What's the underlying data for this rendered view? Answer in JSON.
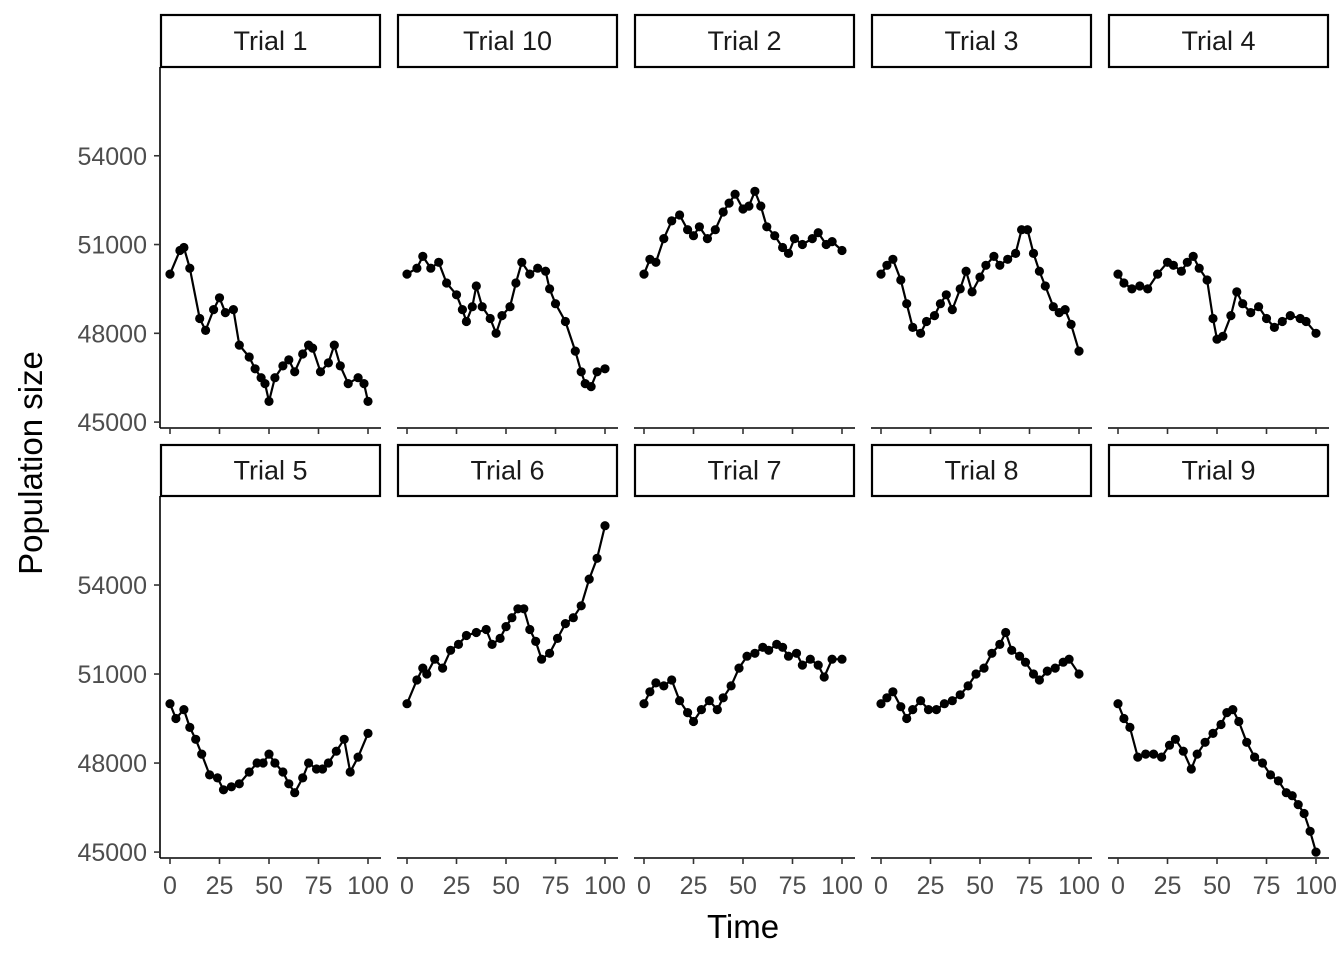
{
  "chart_data": {
    "type": "scatter",
    "connected": true,
    "facet_layout": {
      "rows": 2,
      "cols": 5
    },
    "xlabel": "Time",
    "ylabel": "Population size",
    "xlim": [
      0,
      100
    ],
    "x_ticks": [
      0,
      25,
      50,
      75,
      100
    ],
    "x_tick_labels": [
      "0",
      "25",
      "50",
      "75",
      "100"
    ],
    "ylim": [
      44800,
      57000
    ],
    "y_ticks": [
      45000,
      48000,
      51000,
      54000
    ],
    "y_tick_labels": [
      "45000",
      "48000",
      "51000",
      "54000"
    ],
    "grid": false,
    "point_color": "#000000",
    "panels": [
      {
        "label": "Trial 1",
        "points": [
          [
            0,
            50000
          ],
          [
            5,
            50800
          ],
          [
            7,
            50900
          ],
          [
            10,
            50200
          ],
          [
            15,
            48500
          ],
          [
            18,
            48100
          ],
          [
            22,
            48800
          ],
          [
            25,
            49200
          ],
          [
            28,
            48700
          ],
          [
            32,
            48800
          ],
          [
            35,
            47600
          ],
          [
            40,
            47200
          ],
          [
            43,
            46800
          ],
          [
            46,
            46500
          ],
          [
            48,
            46300
          ],
          [
            50,
            45700
          ],
          [
            53,
            46500
          ],
          [
            57,
            46900
          ],
          [
            60,
            47100
          ],
          [
            63,
            46700
          ],
          [
            67,
            47300
          ],
          [
            70,
            47600
          ],
          [
            72,
            47500
          ],
          [
            76,
            46700
          ],
          [
            80,
            47000
          ],
          [
            83,
            47600
          ],
          [
            86,
            46900
          ],
          [
            90,
            46300
          ],
          [
            95,
            46500
          ],
          [
            98,
            46300
          ],
          [
            100,
            45700
          ]
        ]
      },
      {
        "label": "Trial 10",
        "points": [
          [
            0,
            50000
          ],
          [
            5,
            50200
          ],
          [
            8,
            50600
          ],
          [
            12,
            50200
          ],
          [
            16,
            50400
          ],
          [
            20,
            49700
          ],
          [
            25,
            49300
          ],
          [
            28,
            48800
          ],
          [
            30,
            48400
          ],
          [
            33,
            48900
          ],
          [
            35,
            49600
          ],
          [
            38,
            48900
          ],
          [
            42,
            48500
          ],
          [
            45,
            48000
          ],
          [
            48,
            48600
          ],
          [
            52,
            48900
          ],
          [
            55,
            49700
          ],
          [
            58,
            50400
          ],
          [
            62,
            50000
          ],
          [
            66,
            50200
          ],
          [
            70,
            50100
          ],
          [
            72,
            49500
          ],
          [
            75,
            49000
          ],
          [
            80,
            48400
          ],
          [
            85,
            47400
          ],
          [
            88,
            46700
          ],
          [
            90,
            46300
          ],
          [
            93,
            46200
          ],
          [
            96,
            46700
          ],
          [
            100,
            46800
          ]
        ]
      },
      {
        "label": "Trial 2",
        "points": [
          [
            0,
            50000
          ],
          [
            3,
            50500
          ],
          [
            6,
            50400
          ],
          [
            10,
            51200
          ],
          [
            14,
            51800
          ],
          [
            18,
            52000
          ],
          [
            22,
            51500
          ],
          [
            25,
            51300
          ],
          [
            28,
            51600
          ],
          [
            32,
            51200
          ],
          [
            36,
            51500
          ],
          [
            40,
            52100
          ],
          [
            43,
            52400
          ],
          [
            46,
            52700
          ],
          [
            50,
            52200
          ],
          [
            53,
            52300
          ],
          [
            56,
            52800
          ],
          [
            59,
            52300
          ],
          [
            62,
            51600
          ],
          [
            66,
            51300
          ],
          [
            70,
            50900
          ],
          [
            73,
            50700
          ],
          [
            76,
            51200
          ],
          [
            80,
            51000
          ],
          [
            85,
            51200
          ],
          [
            88,
            51400
          ],
          [
            92,
            51000
          ],
          [
            95,
            51100
          ],
          [
            100,
            50800
          ]
        ]
      },
      {
        "label": "Trial 3",
        "points": [
          [
            0,
            50000
          ],
          [
            3,
            50300
          ],
          [
            6,
            50500
          ],
          [
            10,
            49800
          ],
          [
            13,
            49000
          ],
          [
            16,
            48200
          ],
          [
            20,
            48000
          ],
          [
            23,
            48400
          ],
          [
            27,
            48600
          ],
          [
            30,
            49000
          ],
          [
            33,
            49300
          ],
          [
            36,
            48800
          ],
          [
            40,
            49500
          ],
          [
            43,
            50100
          ],
          [
            46,
            49400
          ],
          [
            50,
            49900
          ],
          [
            53,
            50300
          ],
          [
            57,
            50600
          ],
          [
            60,
            50300
          ],
          [
            64,
            50500
          ],
          [
            68,
            50700
          ],
          [
            71,
            51500
          ],
          [
            74,
            51500
          ],
          [
            77,
            50700
          ],
          [
            80,
            50100
          ],
          [
            83,
            49600
          ],
          [
            87,
            48900
          ],
          [
            90,
            48700
          ],
          [
            93,
            48800
          ],
          [
            96,
            48300
          ],
          [
            100,
            47400
          ]
        ]
      },
      {
        "label": "Trial 4",
        "points": [
          [
            0,
            50000
          ],
          [
            3,
            49700
          ],
          [
            7,
            49500
          ],
          [
            11,
            49600
          ],
          [
            15,
            49500
          ],
          [
            20,
            50000
          ],
          [
            25,
            50400
          ],
          [
            28,
            50300
          ],
          [
            32,
            50100
          ],
          [
            35,
            50400
          ],
          [
            38,
            50600
          ],
          [
            41,
            50200
          ],
          [
            45,
            49800
          ],
          [
            48,
            48500
          ],
          [
            50,
            47800
          ],
          [
            53,
            47900
          ],
          [
            57,
            48600
          ],
          [
            60,
            49400
          ],
          [
            63,
            49000
          ],
          [
            67,
            48700
          ],
          [
            71,
            48900
          ],
          [
            75,
            48500
          ],
          [
            79,
            48200
          ],
          [
            83,
            48400
          ],
          [
            87,
            48600
          ],
          [
            92,
            48500
          ],
          [
            95,
            48400
          ],
          [
            100,
            48000
          ]
        ]
      },
      {
        "label": "Trial 5",
        "points": [
          [
            0,
            50000
          ],
          [
            3,
            49500
          ],
          [
            7,
            49800
          ],
          [
            10,
            49200
          ],
          [
            13,
            48800
          ],
          [
            16,
            48300
          ],
          [
            20,
            47600
          ],
          [
            24,
            47500
          ],
          [
            27,
            47100
          ],
          [
            31,
            47200
          ],
          [
            35,
            47300
          ],
          [
            40,
            47700
          ],
          [
            44,
            48000
          ],
          [
            47,
            48000
          ],
          [
            50,
            48300
          ],
          [
            53,
            48000
          ],
          [
            57,
            47700
          ],
          [
            60,
            47300
          ],
          [
            63,
            47000
          ],
          [
            67,
            47500
          ],
          [
            70,
            48000
          ],
          [
            74,
            47800
          ],
          [
            77,
            47800
          ],
          [
            80,
            48000
          ],
          [
            84,
            48400
          ],
          [
            88,
            48800
          ],
          [
            91,
            47700
          ],
          [
            95,
            48200
          ],
          [
            100,
            49000
          ]
        ]
      },
      {
        "label": "Trial 6",
        "points": [
          [
            0,
            50000
          ],
          [
            5,
            50800
          ],
          [
            8,
            51200
          ],
          [
            10,
            51000
          ],
          [
            14,
            51500
          ],
          [
            18,
            51200
          ],
          [
            22,
            51800
          ],
          [
            26,
            52000
          ],
          [
            30,
            52300
          ],
          [
            35,
            52400
          ],
          [
            40,
            52500
          ],
          [
            43,
            52000
          ],
          [
            47,
            52200
          ],
          [
            50,
            52600
          ],
          [
            53,
            52900
          ],
          [
            56,
            53200
          ],
          [
            59,
            53200
          ],
          [
            62,
            52500
          ],
          [
            65,
            52100
          ],
          [
            68,
            51500
          ],
          [
            72,
            51700
          ],
          [
            76,
            52200
          ],
          [
            80,
            52700
          ],
          [
            84,
            52900
          ],
          [
            88,
            53300
          ],
          [
            92,
            54200
          ],
          [
            96,
            54900
          ],
          [
            100,
            56000
          ]
        ]
      },
      {
        "label": "Trial 7",
        "points": [
          [
            0,
            50000
          ],
          [
            3,
            50400
          ],
          [
            6,
            50700
          ],
          [
            10,
            50600
          ],
          [
            14,
            50800
          ],
          [
            18,
            50100
          ],
          [
            22,
            49700
          ],
          [
            25,
            49400
          ],
          [
            29,
            49800
          ],
          [
            33,
            50100
          ],
          [
            37,
            49800
          ],
          [
            40,
            50200
          ],
          [
            44,
            50600
          ],
          [
            48,
            51200
          ],
          [
            52,
            51600
          ],
          [
            56,
            51700
          ],
          [
            60,
            51900
          ],
          [
            63,
            51800
          ],
          [
            67,
            52000
          ],
          [
            70,
            51900
          ],
          [
            73,
            51600
          ],
          [
            77,
            51700
          ],
          [
            80,
            51300
          ],
          [
            84,
            51500
          ],
          [
            88,
            51300
          ],
          [
            91,
            50900
          ],
          [
            95,
            51500
          ],
          [
            100,
            51500
          ]
        ]
      },
      {
        "label": "Trial 8",
        "points": [
          [
            0,
            50000
          ],
          [
            3,
            50200
          ],
          [
            6,
            50400
          ],
          [
            10,
            49900
          ],
          [
            13,
            49500
          ],
          [
            16,
            49800
          ],
          [
            20,
            50100
          ],
          [
            24,
            49800
          ],
          [
            28,
            49800
          ],
          [
            32,
            50000
          ],
          [
            36,
            50100
          ],
          [
            40,
            50300
          ],
          [
            44,
            50600
          ],
          [
            48,
            51000
          ],
          [
            52,
            51200
          ],
          [
            56,
            51700
          ],
          [
            60,
            52000
          ],
          [
            63,
            52400
          ],
          [
            66,
            51800
          ],
          [
            70,
            51600
          ],
          [
            73,
            51400
          ],
          [
            77,
            51000
          ],
          [
            80,
            50800
          ],
          [
            84,
            51100
          ],
          [
            88,
            51200
          ],
          [
            92,
            51400
          ],
          [
            95,
            51500
          ],
          [
            100,
            51000
          ]
        ]
      },
      {
        "label": "Trial 9",
        "points": [
          [
            0,
            50000
          ],
          [
            3,
            49500
          ],
          [
            6,
            49200
          ],
          [
            10,
            48200
          ],
          [
            14,
            48300
          ],
          [
            18,
            48300
          ],
          [
            22,
            48200
          ],
          [
            26,
            48600
          ],
          [
            29,
            48800
          ],
          [
            33,
            48400
          ],
          [
            37,
            47800
          ],
          [
            40,
            48300
          ],
          [
            44,
            48700
          ],
          [
            48,
            49000
          ],
          [
            52,
            49300
          ],
          [
            55,
            49700
          ],
          [
            58,
            49800
          ],
          [
            61,
            49400
          ],
          [
            65,
            48700
          ],
          [
            69,
            48200
          ],
          [
            73,
            48000
          ],
          [
            77,
            47600
          ],
          [
            81,
            47400
          ],
          [
            85,
            47000
          ],
          [
            88,
            46900
          ],
          [
            91,
            46600
          ],
          [
            94,
            46300
          ],
          [
            97,
            45700
          ],
          [
            100,
            45000
          ]
        ]
      }
    ]
  }
}
